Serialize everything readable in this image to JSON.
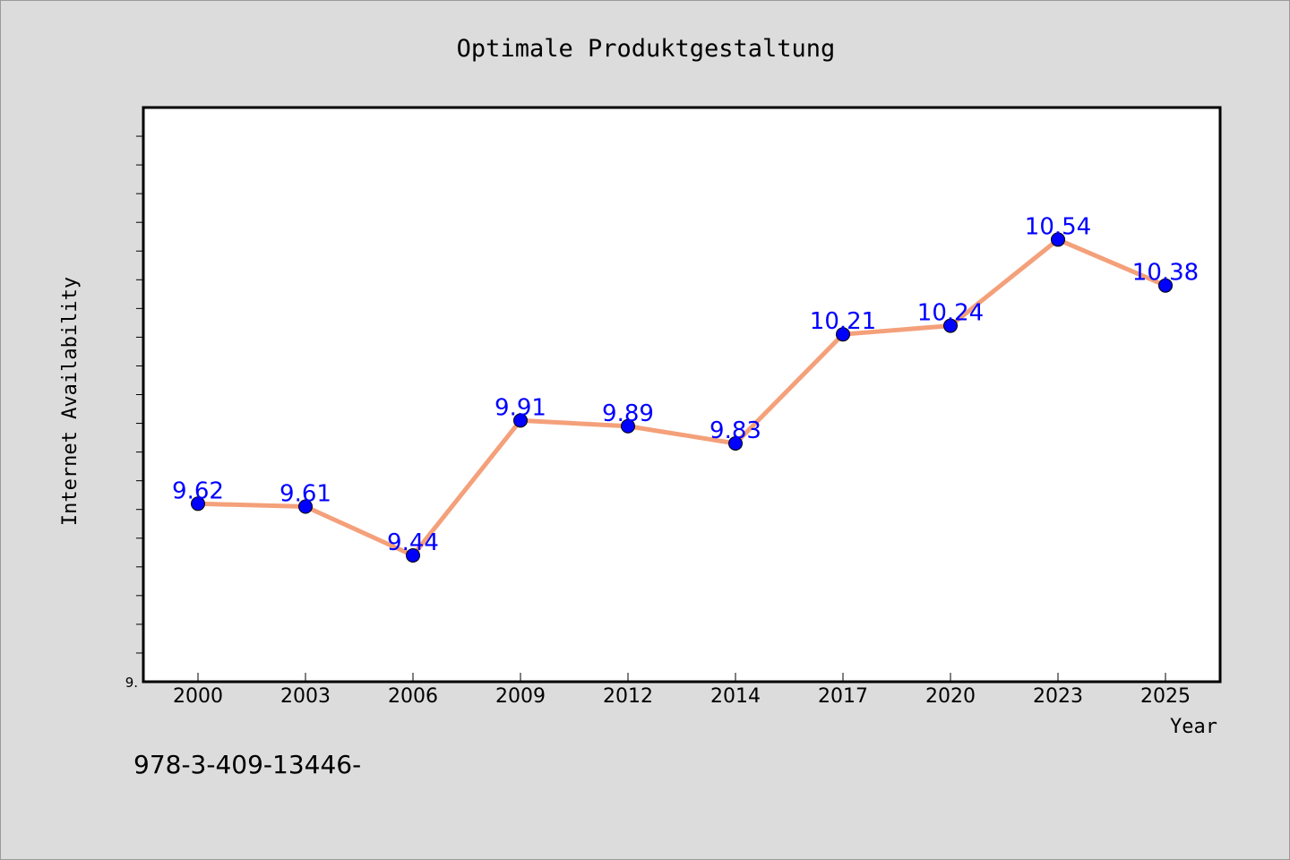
{
  "chart_data": {
    "type": "line",
    "title": "Optimale Produktgestaltung",
    "xlabel": "Year",
    "ylabel": "Internet Availability",
    "categories": [
      "2000",
      "2003",
      "2006",
      "2009",
      "2012",
      "2014",
      "2017",
      "2020",
      "2023",
      "2025"
    ],
    "series": [
      {
        "values": [
          9.62,
          9.61,
          9.44,
          9.91,
          9.89,
          9.83,
          10.21,
          10.24,
          10.54,
          10.38
        ],
        "labels": [
          "9.62",
          "9.61",
          "9.44",
          "9.91",
          "9.89",
          "9.83",
          "10.21",
          "10.24",
          "10.54",
          "10.38"
        ]
      }
    ],
    "ylim": [
      9.0,
      11.0
    ],
    "y_tick_labels": [
      "9."
    ],
    "grid": false,
    "legend": "none",
    "line_color": "#f4a07a",
    "marker_color": "#0000ff",
    "label_color": "#0000ff"
  },
  "footer": {
    "text": "978-3-409-13446-"
  },
  "colors": {
    "background": "#dcdcdc",
    "plot_background": "#ffffff",
    "axis": "#000000"
  }
}
